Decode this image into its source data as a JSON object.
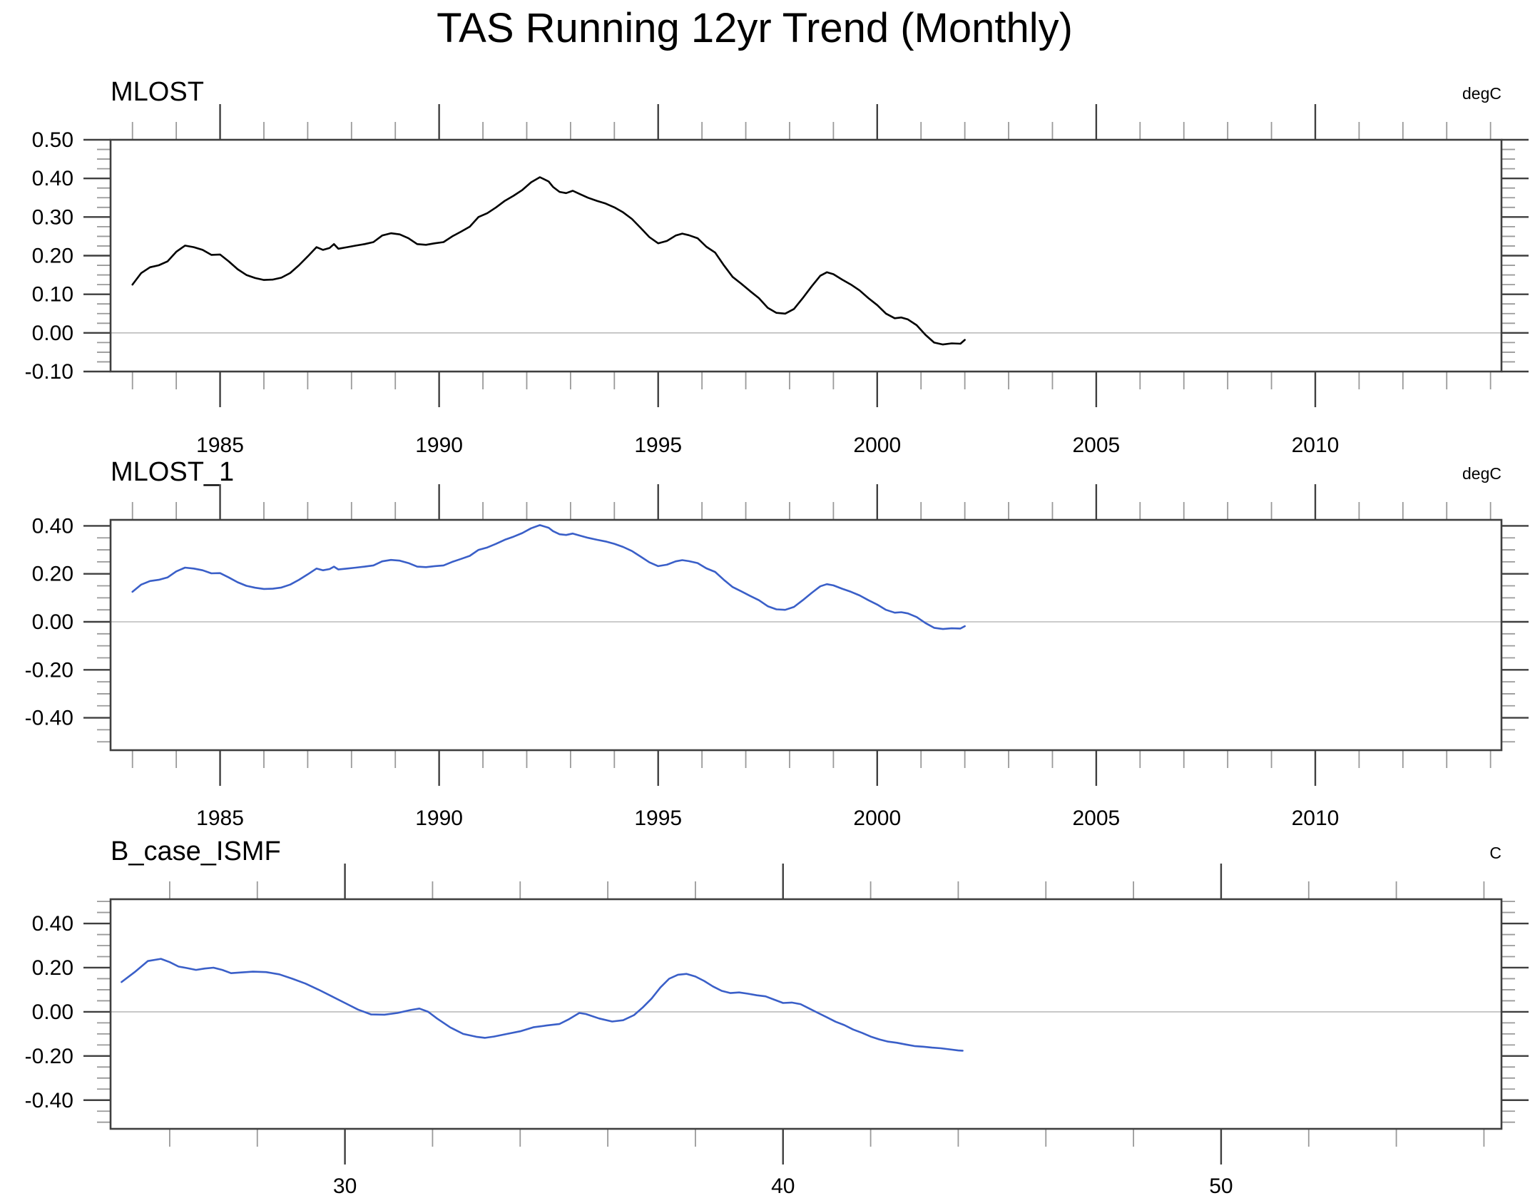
{
  "title": "TAS Running 12yr Trend (Monthly)",
  "colors": {
    "background": "#ffffff",
    "frame": "#3f3f3f",
    "tick_major": "#3f3f3f",
    "tick_minor": "#9a9a9a",
    "zero_line": "#bcbcbc",
    "text": "#000000",
    "line_black": "#000000",
    "line_blue": "#3a5fc8"
  },
  "series": {
    "MLOST": {
      "x": [
        1983.0,
        1983.2,
        1983.4,
        1983.6,
        1983.8,
        1984.0,
        1984.2,
        1984.4,
        1984.6,
        1984.8,
        1985.0,
        1985.2,
        1985.4,
        1985.6,
        1985.8,
        1986.0,
        1986.2,
        1986.4,
        1986.6,
        1986.8,
        1987.0,
        1987.2,
        1987.35,
        1987.5,
        1987.6,
        1987.7,
        1987.9,
        1988.1,
        1988.3,
        1988.5,
        1988.7,
        1988.9,
        1989.1,
        1989.3,
        1989.5,
        1989.7,
        1989.9,
        1990.1,
        1990.3,
        1990.5,
        1990.7,
        1990.9,
        1991.1,
        1991.3,
        1991.5,
        1991.7,
        1991.9,
        1992.1,
        1992.3,
        1992.5,
        1992.6,
        1992.75,
        1992.9,
        1993.05,
        1993.2,
        1993.4,
        1993.6,
        1993.8,
        1994.0,
        1994.2,
        1994.4,
        1994.6,
        1994.8,
        1995.0,
        1995.2,
        1995.4,
        1995.55,
        1995.7,
        1995.9,
        1996.1,
        1996.3,
        1996.5,
        1996.7,
        1996.9,
        1997.1,
        1997.3,
        1997.5,
        1997.7,
        1997.9,
        1998.1,
        1998.3,
        1998.5,
        1998.7,
        1998.85,
        1999.0,
        1999.2,
        1999.4,
        1999.6,
        1999.8,
        2000.0,
        2000.2,
        2000.4,
        2000.55,
        2000.7,
        2000.9,
        2001.1,
        2001.3,
        2001.5,
        2001.7,
        2001.9,
        2002.0
      ],
      "y": [
        0.125,
        0.155,
        0.17,
        0.175,
        0.185,
        0.21,
        0.226,
        0.222,
        0.215,
        0.202,
        0.203,
        0.185,
        0.165,
        0.15,
        0.142,
        0.137,
        0.138,
        0.143,
        0.155,
        0.175,
        0.198,
        0.222,
        0.215,
        0.22,
        0.23,
        0.218,
        0.222,
        0.226,
        0.23,
        0.235,
        0.252,
        0.258,
        0.255,
        0.245,
        0.23,
        0.228,
        0.232,
        0.235,
        0.25,
        0.262,
        0.275,
        0.3,
        0.31,
        0.325,
        0.342,
        0.355,
        0.37,
        0.39,
        0.403,
        0.392,
        0.378,
        0.365,
        0.362,
        0.368,
        0.36,
        0.35,
        0.342,
        0.335,
        0.325,
        0.312,
        0.295,
        0.272,
        0.248,
        0.232,
        0.238,
        0.252,
        0.257,
        0.253,
        0.245,
        0.223,
        0.208,
        0.175,
        0.145,
        0.127,
        0.108,
        0.09,
        0.065,
        0.052,
        0.05,
        0.062,
        0.09,
        0.12,
        0.148,
        0.157,
        0.152,
        0.138,
        0.125,
        0.11,
        0.09,
        0.072,
        0.05,
        0.038,
        0.04,
        0.035,
        0.02,
        -0.005,
        -0.025,
        -0.03,
        -0.027,
        -0.028,
        -0.018
      ]
    },
    "B_case_ISMF": {
      "x": [
        24.9,
        25.2,
        25.5,
        25.8,
        26.0,
        26.2,
        26.4,
        26.6,
        26.8,
        27.0,
        27.2,
        27.4,
        27.6,
        27.9,
        28.2,
        28.5,
        28.8,
        29.1,
        29.4,
        29.7,
        30.0,
        30.3,
        30.6,
        30.9,
        31.2,
        31.5,
        31.7,
        31.9,
        32.1,
        32.4,
        32.7,
        33.0,
        33.2,
        33.4,
        33.7,
        34.0,
        34.3,
        34.6,
        34.9,
        35.1,
        35.35,
        35.5,
        35.8,
        36.1,
        36.35,
        36.6,
        36.8,
        37.0,
        37.2,
        37.4,
        37.6,
        37.8,
        38.0,
        38.2,
        38.4,
        38.6,
        38.8,
        39.0,
        39.2,
        39.4,
        39.6,
        39.8,
        40.0,
        40.2,
        40.4,
        40.6,
        40.8,
        41.0,
        41.2,
        41.4,
        41.6,
        41.8,
        42.0,
        42.2,
        42.4,
        42.6,
        42.8,
        43.0,
        43.2,
        43.4,
        43.6,
        43.8,
        44.0,
        44.1
      ],
      "y": [
        0.135,
        0.18,
        0.23,
        0.24,
        0.225,
        0.205,
        0.198,
        0.19,
        0.196,
        0.2,
        0.19,
        0.175,
        0.178,
        0.182,
        0.18,
        0.17,
        0.15,
        0.128,
        0.1,
        0.07,
        0.04,
        0.01,
        -0.012,
        -0.013,
        -0.005,
        0.008,
        0.015,
        0.0,
        -0.03,
        -0.07,
        -0.1,
        -0.113,
        -0.118,
        -0.112,
        -0.1,
        -0.088,
        -0.07,
        -0.062,
        -0.055,
        -0.035,
        -0.005,
        -0.01,
        -0.03,
        -0.044,
        -0.038,
        -0.015,
        0.02,
        0.06,
        0.11,
        0.15,
        0.168,
        0.172,
        0.16,
        0.14,
        0.115,
        0.095,
        0.085,
        0.088,
        0.082,
        0.075,
        0.07,
        0.055,
        0.04,
        0.042,
        0.035,
        0.015,
        -0.005,
        -0.025,
        -0.045,
        -0.06,
        -0.08,
        -0.095,
        -0.112,
        -0.125,
        -0.135,
        -0.14,
        -0.148,
        -0.155,
        -0.158,
        -0.162,
        -0.165,
        -0.17,
        -0.175,
        -0.176
      ]
    }
  },
  "chart_data": [
    {
      "type": "line",
      "title": "MLOST",
      "unit": "degC",
      "series": "MLOST",
      "color": "#000000",
      "xlim": [
        1982.5,
        2014.25
      ],
      "ylim": [
        -0.1,
        0.5
      ],
      "yticks_major": [
        0.5,
        0.4,
        0.3,
        0.2,
        0.1,
        0.0,
        -0.1
      ],
      "ytick_labels": [
        "0.50",
        "0.40",
        "0.30",
        "0.20",
        "0.10",
        "0.00",
        "-0.10"
      ],
      "ytick_minor_step": 0.025,
      "xticks_major": [
        1985,
        1990,
        1995,
        2000,
        2005,
        2010
      ],
      "xtick_labels": [
        "1985",
        "1990",
        "1995",
        "2000",
        "2005",
        "2010"
      ],
      "xtick_minor_step": 1,
      "zero_reference_line": true,
      "grid": "off",
      "legend": "none"
    },
    {
      "type": "line",
      "title": "MLOST_1",
      "unit": "degC",
      "series": "MLOST",
      "color": "#3a5fc8",
      "xlim": [
        1982.5,
        2014.25
      ],
      "ylim": [
        -0.535,
        0.425
      ],
      "yticks_major": [
        0.4,
        0.2,
        0.0,
        -0.2,
        -0.4
      ],
      "ytick_labels": [
        "0.40",
        "0.20",
        "0.00",
        "-0.20",
        "-0.40"
      ],
      "ytick_minor_step": 0.05,
      "xticks_major": [
        1985,
        1990,
        1995,
        2000,
        2005,
        2010
      ],
      "xtick_labels": [
        "1985",
        "1990",
        "1995",
        "2000",
        "2005",
        "2010"
      ],
      "xtick_minor_step": 1,
      "zero_reference_line": true,
      "grid": "off",
      "legend": "none"
    },
    {
      "type": "line",
      "title": "B_case_ISMF",
      "unit": "C",
      "series": "B_case_ISMF",
      "color": "#3a5fc8",
      "xlim": [
        24.65,
        56.4
      ],
      "ylim": [
        -0.53,
        0.51
      ],
      "yticks_major": [
        0.4,
        0.2,
        0.0,
        -0.2,
        -0.4
      ],
      "ytick_labels": [
        "0.40",
        "0.20",
        "0.00",
        "-0.20",
        "-0.40"
      ],
      "ytick_minor_step": 0.05,
      "xticks_major": [
        30,
        40,
        50
      ],
      "xtick_labels": [
        "30",
        "40",
        "50"
      ],
      "xtick_minor_step": 2,
      "zero_reference_line": true,
      "grid": "off",
      "legend": "none"
    }
  ]
}
